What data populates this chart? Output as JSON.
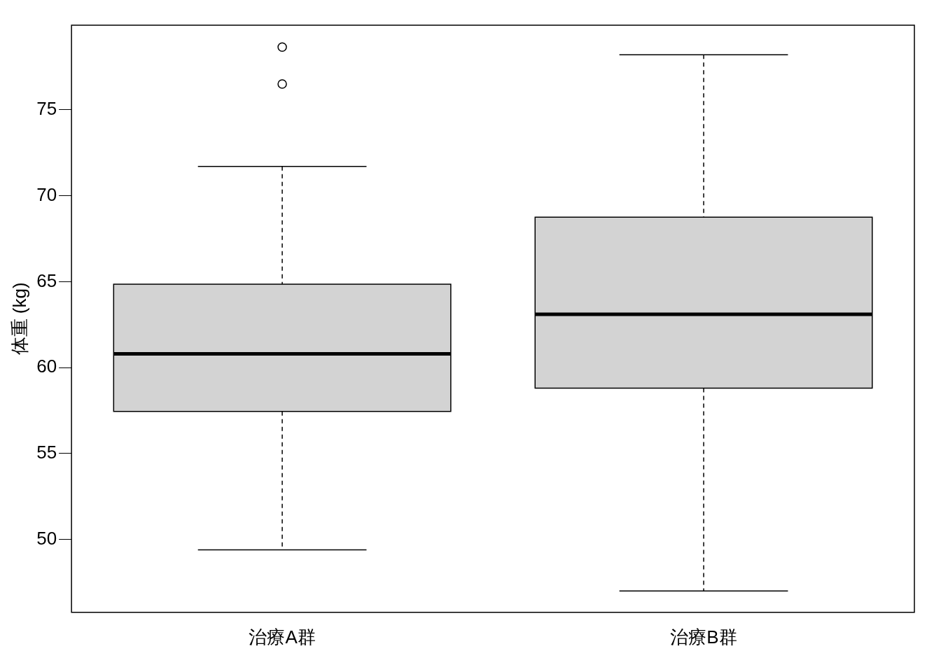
{
  "chart_data": {
    "type": "box",
    "ylabel": "体重 (kg)",
    "categories": [
      "治療A群",
      "治療B群"
    ],
    "boxes": [
      {
        "low": 49.4,
        "q1": 57.45,
        "median": 60.8,
        "q3": 64.85,
        "high": 71.7,
        "outliers": [
          78.65,
          76.5
        ]
      },
      {
        "low": 47.0,
        "q1": 58.8,
        "median": 63.1,
        "q3": 68.75,
        "high": 78.2
      }
    ],
    "color": "#d3d3d3",
    "ylim": [
      45.76,
      79.92
    ],
    "yticks": [
      50,
      55,
      60,
      65,
      70,
      75
    ],
    "grid": false,
    "legend": false
  }
}
